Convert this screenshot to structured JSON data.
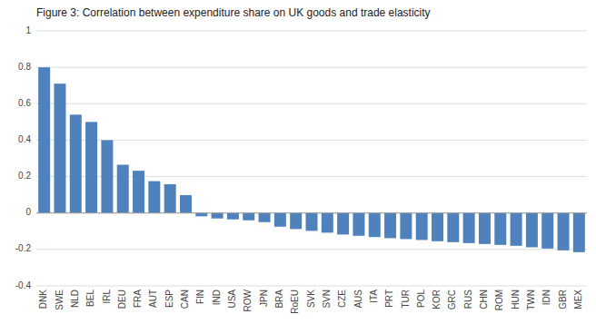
{
  "chart_data": {
    "type": "bar",
    "title": "Figure 3: Correlation between expenditure share on UK goods and trade elasticity",
    "categories": [
      "DNK",
      "SWE",
      "NLD",
      "BEL",
      "IRL",
      "DEU",
      "FRA",
      "AUT",
      "ESP",
      "CAN",
      "FIN",
      "IND",
      "USA",
      "ROW",
      "JPN",
      "BRA",
      "RoEU",
      "SVK",
      "SVN",
      "CZE",
      "AUS",
      "ITA",
      "PRT",
      "TUR",
      "POL",
      "KOR",
      "GRC",
      "RUS",
      "CHN",
      "ROM",
      "HUN",
      "TWN",
      "IDN",
      "GBR",
      "MEX"
    ],
    "values": [
      0.8,
      0.71,
      0.54,
      0.5,
      0.4,
      0.265,
      0.232,
      0.175,
      0.158,
      0.098,
      -0.018,
      -0.03,
      -0.035,
      -0.04,
      -0.05,
      -0.075,
      -0.088,
      -0.098,
      -0.108,
      -0.118,
      -0.125,
      -0.132,
      -0.138,
      -0.143,
      -0.148,
      -0.155,
      -0.16,
      -0.165,
      -0.17,
      -0.175,
      -0.18,
      -0.188,
      -0.195,
      -0.205,
      -0.215
    ],
    "color": "#4f81bd",
    "ylim": [
      -0.4,
      1.0
    ],
    "yticks": [
      -0.4,
      -0.2,
      0,
      0.2,
      0.4,
      0.6,
      0.8,
      1
    ],
    "grid": true
  }
}
